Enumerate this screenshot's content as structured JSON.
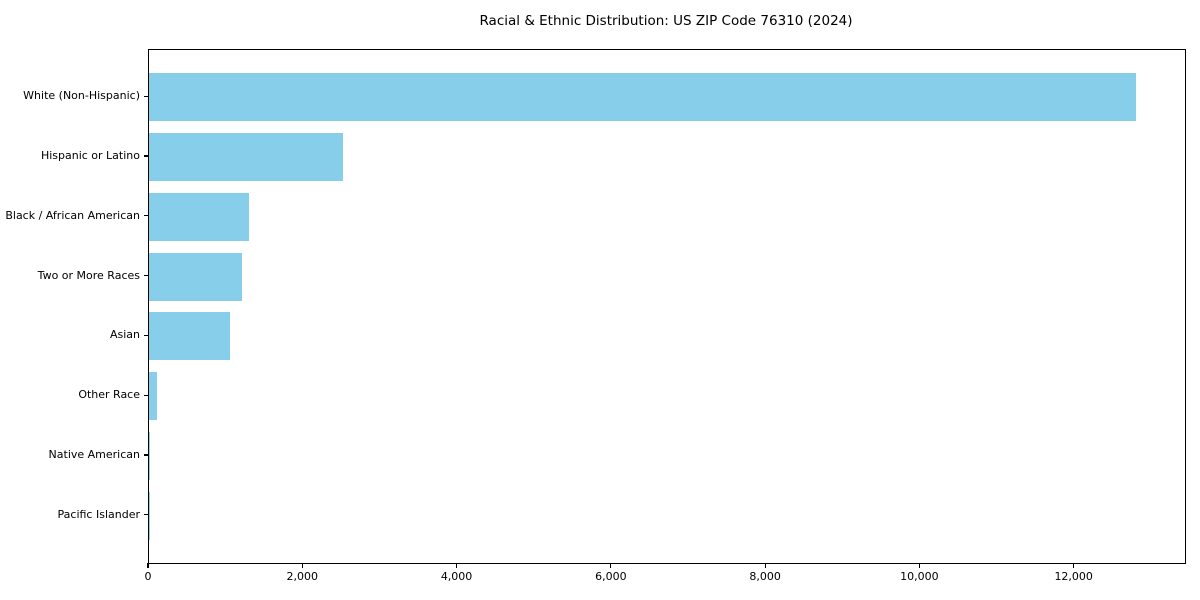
{
  "figure": {
    "background": "#ffffff",
    "axis_color": "#000000",
    "text_color": "#000000"
  },
  "chart_data": {
    "type": "bar",
    "orientation": "horizontal",
    "title": "Racial & Ethnic Distribution: US ZIP Code 76310 (2024)",
    "categories": [
      "White (Non-Hispanic)",
      "Hispanic or Latino",
      "Black / African American",
      "Two or More Races",
      "Asian",
      "Other Race",
      "Native American",
      "Pacific Islander"
    ],
    "values": [
      12790,
      2520,
      1295,
      1205,
      1050,
      100,
      15,
      5
    ],
    "bar_color": "#87CEEB",
    "xlabel": "",
    "ylabel": "",
    "xlim": [
      0,
      13430
    ],
    "x_ticks": [
      0,
      2000,
      4000,
      6000,
      8000,
      10000,
      12000
    ],
    "x_tick_labels": [
      "0",
      "2,000",
      "4,000",
      "6,000",
      "8,000",
      "10,000",
      "12,000"
    ],
    "grid": false,
    "legend": null
  }
}
